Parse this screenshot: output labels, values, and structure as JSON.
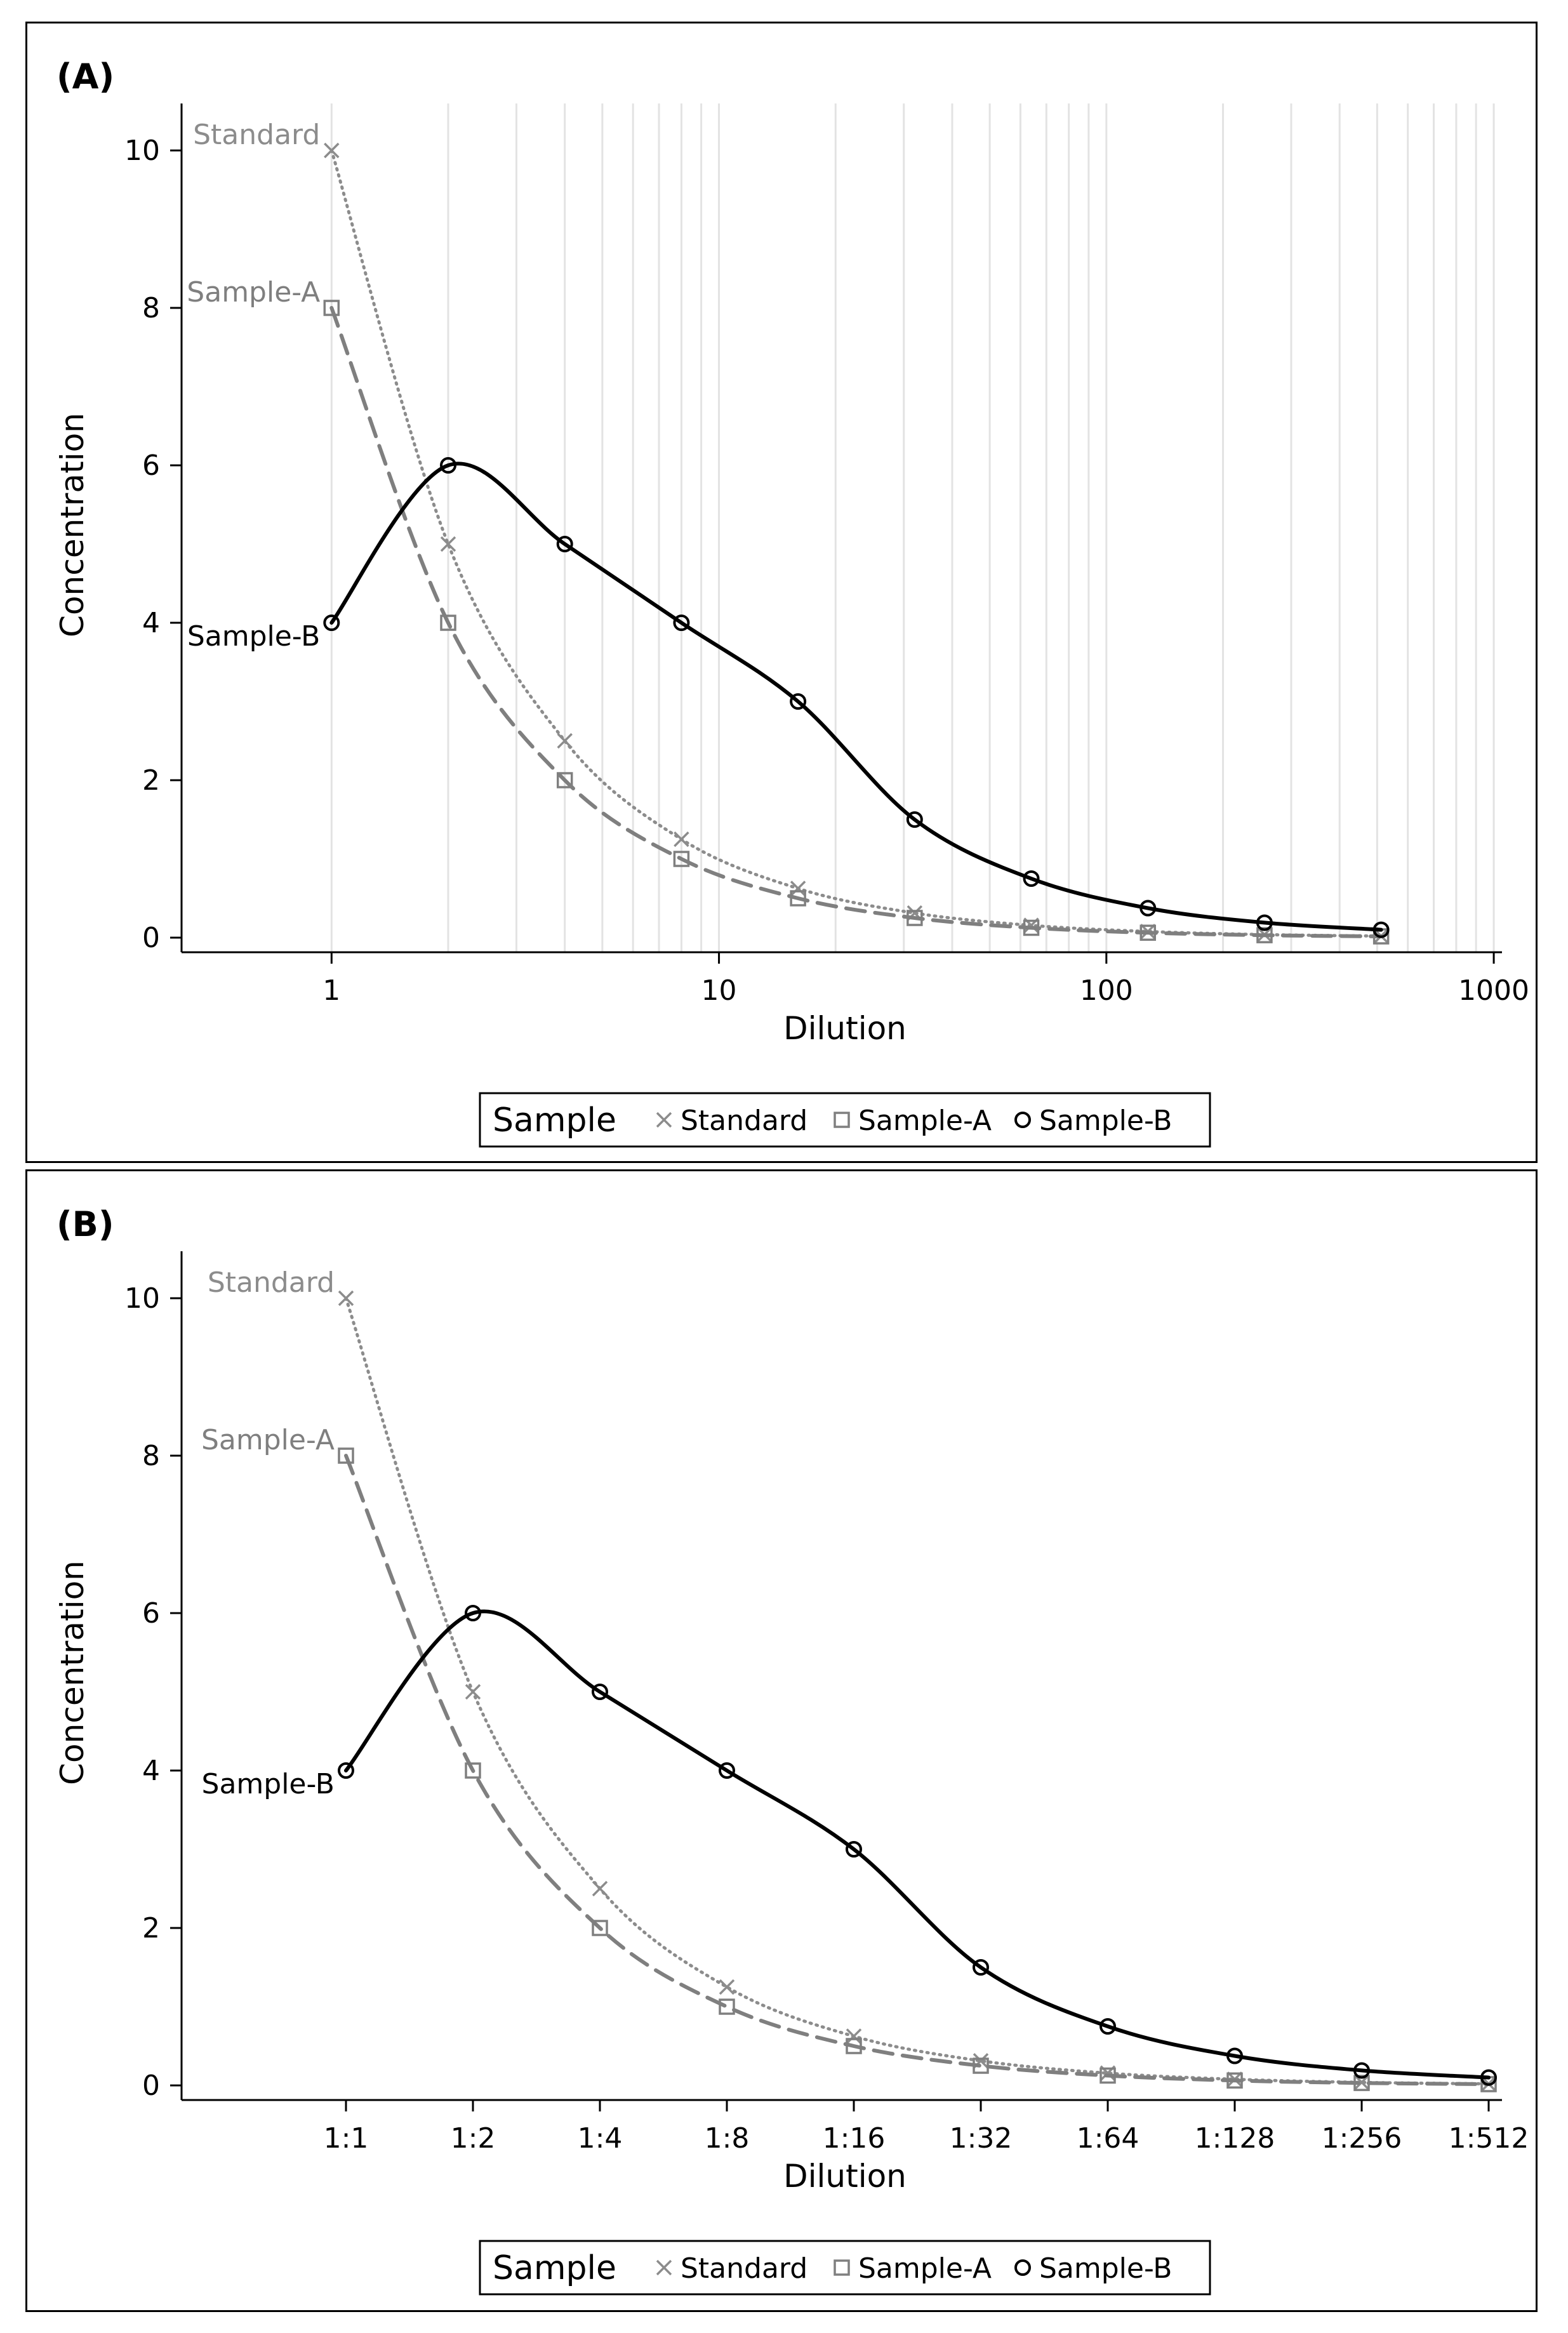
{
  "chart_data": [
    {
      "type": "line",
      "panel_label": "(A)",
      "xscale": "log",
      "xlabel": "Dilution",
      "ylabel": "Concentration",
      "x": [
        1,
        2,
        4,
        8,
        16,
        32,
        64,
        128,
        256,
        512
      ],
      "xlim": [
        0.41,
        1050
      ],
      "ylim": [
        -0.2,
        10.65
      ],
      "xticks": [
        1,
        10,
        100,
        1000
      ],
      "xtick_labels": [
        "1",
        "10",
        "100",
        "1000"
      ],
      "yticks": [
        0,
        2,
        4,
        6,
        8,
        10
      ],
      "ytick_labels": [
        "0",
        "2",
        "4",
        "6",
        "8",
        "10"
      ],
      "grid": "vertical minor log gridlines",
      "series": [
        {
          "name": "Standard",
          "marker": "x",
          "line": "dotted",
          "color": "#8c8c8c",
          "values": [
            10,
            5,
            2.5,
            1.25,
            0.625,
            0.3125,
            0.156,
            0.078,
            0.039,
            0.02
          ]
        },
        {
          "name": "Sample-A",
          "marker": "square",
          "line": "dashed",
          "color": "#7f7f7f",
          "values": [
            8,
            4,
            2,
            1,
            0.5,
            0.25,
            0.125,
            0.0625,
            0.031,
            0.016
          ]
        },
        {
          "name": "Sample-B",
          "marker": "circle",
          "line": "solid",
          "color": "#000000",
          "values": [
            4,
            6,
            5,
            4,
            3,
            1.5,
            0.75,
            0.375,
            0.19,
            0.1
          ]
        }
      ],
      "legend": {
        "title": "Sample",
        "items": [
          "Standard",
          "Sample-A",
          "Sample-B"
        ],
        "position": "bottom-center"
      }
    },
    {
      "type": "line",
      "panel_label": "(B)",
      "xscale": "categorical",
      "xlabel": "Dilution",
      "ylabel": "Concentration",
      "categories": [
        "1:1",
        "1:2",
        "1:4",
        "1:8",
        "1:16",
        "1:32",
        "1:64",
        "1:128",
        "1:256",
        "1:512"
      ],
      "x": [
        1,
        2,
        4,
        8,
        16,
        32,
        64,
        128,
        256,
        512
      ],
      "ylim": [
        -0.2,
        10.65
      ],
      "yticks": [
        0,
        2,
        4,
        6,
        8,
        10
      ],
      "ytick_labels": [
        "0",
        "2",
        "4",
        "6",
        "8",
        "10"
      ],
      "grid": "none",
      "series": [
        {
          "name": "Standard",
          "marker": "x",
          "line": "dotted",
          "color": "#8c8c8c",
          "values": [
            10,
            5,
            2.5,
            1.25,
            0.625,
            0.3125,
            0.156,
            0.078,
            0.039,
            0.02
          ]
        },
        {
          "name": "Sample-A",
          "marker": "square",
          "line": "dashed",
          "color": "#7f7f7f",
          "values": [
            8,
            4,
            2,
            1,
            0.5,
            0.25,
            0.125,
            0.0625,
            0.031,
            0.016
          ]
        },
        {
          "name": "Sample-B",
          "marker": "circle",
          "line": "solid",
          "color": "#000000",
          "values": [
            4,
            6,
            5,
            4,
            3,
            1.5,
            0.75,
            0.375,
            0.19,
            0.1
          ]
        }
      ],
      "legend": {
        "title": "Sample",
        "items": [
          "Standard",
          "Sample-A",
          "Sample-B"
        ],
        "position": "bottom-center"
      }
    }
  ]
}
